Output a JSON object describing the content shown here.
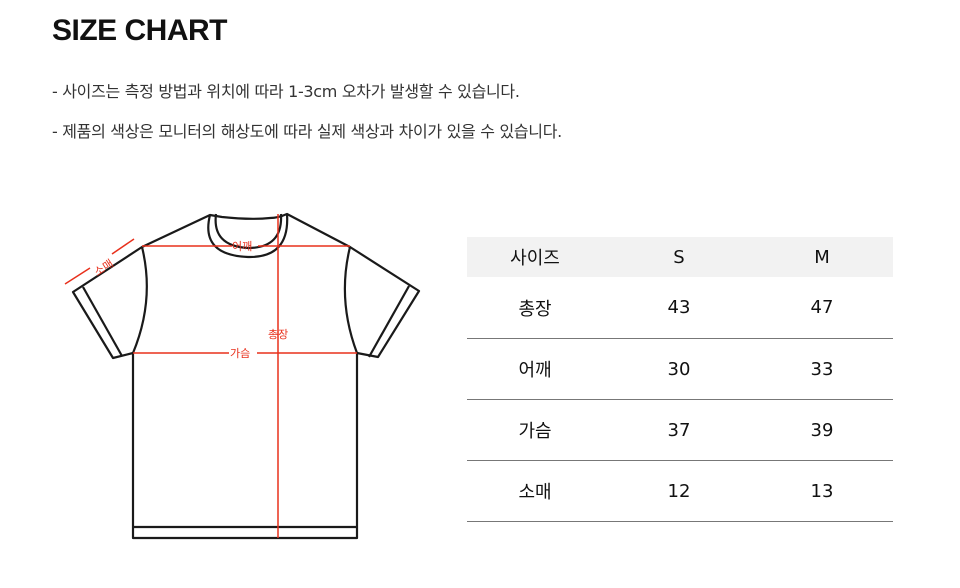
{
  "title": "SIZE CHART",
  "notes": [
    "- 사이즈는 측정 방법과 위치에 따라 1-3cm 오차가 발생할 수 있습니다.",
    "- 제품의 색상은 모니터의 해상도에 따라 실제 색상과 차이가 있을 수 있습니다."
  ],
  "diagram": {
    "labels": {
      "sleeve": "소매",
      "shoulder": "어깨",
      "length": "총장",
      "chest": "가슴"
    },
    "measure_color": "#e8301c"
  },
  "table": {
    "headers": [
      "사이즈",
      "S",
      "M"
    ],
    "rows": [
      [
        "총장",
        "43",
        "47"
      ],
      [
        "어깨",
        "30",
        "33"
      ],
      [
        "가슴",
        "37",
        "39"
      ],
      [
        "소매",
        "12",
        "13"
      ]
    ]
  }
}
